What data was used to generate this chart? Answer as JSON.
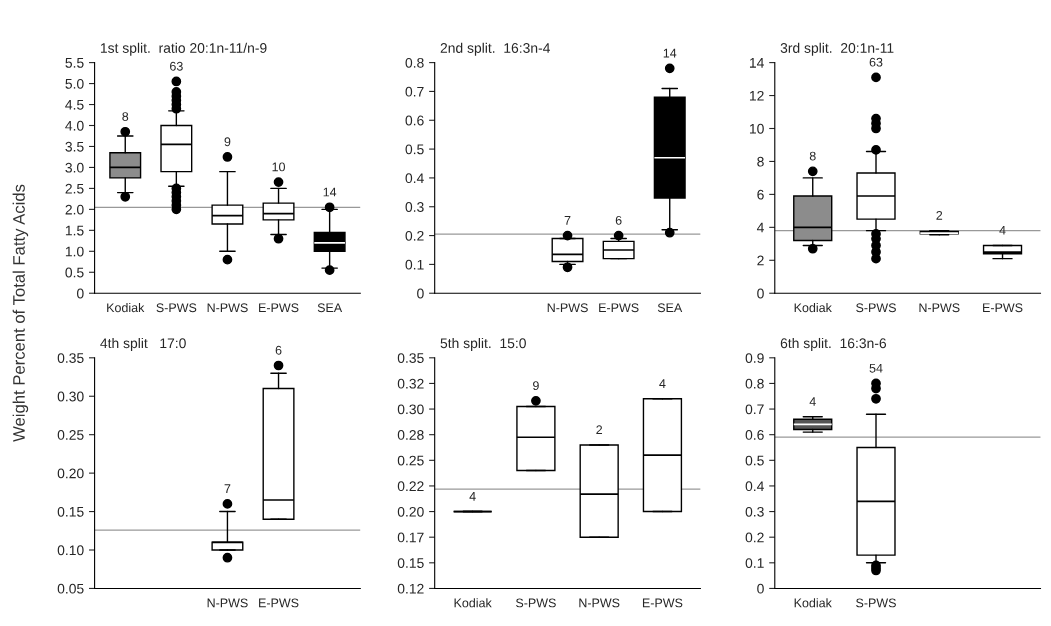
{
  "chart_data": [
    {
      "type": "box",
      "title": "1st split.  ratio 20:1n-11/n-9",
      "ylabel": "Weight Percent of Total Fatty Acids",
      "categories": [
        "Kodiak",
        "S-PWS",
        "N-PWS",
        "E-PWS",
        "SEA"
      ],
      "colors": [
        "#8c8c8c",
        "#ffffff",
        "#ffffff",
        "#ffffff",
        "#000000"
      ],
      "boxes": [
        {
          "low": 2.4,
          "q1": 2.75,
          "median": 3.0,
          "q3": 3.35,
          "high": 3.75,
          "outliers": [
            2.3,
            3.85
          ]
        },
        {
          "low": 2.55,
          "q1": 2.9,
          "median": 3.55,
          "q3": 4.0,
          "high": 4.35,
          "outliers": [
            2.0,
            2.1,
            2.2,
            2.3,
            2.4,
            2.5,
            4.4,
            4.5,
            4.6,
            4.7,
            4.8,
            5.05
          ]
        },
        {
          "low": 1.0,
          "q1": 1.65,
          "median": 1.85,
          "q3": 2.1,
          "high": 2.9,
          "outliers": [
            0.8,
            3.25
          ]
        },
        {
          "low": 1.4,
          "q1": 1.75,
          "median": 1.9,
          "q3": 2.15,
          "high": 2.5,
          "outliers": [
            1.3,
            2.65
          ]
        },
        {
          "low": 0.6,
          "q1": 1.0,
          "median": 1.2,
          "q3": 1.45,
          "high": 2.0,
          "outliers": [
            0.55,
            2.05
          ]
        }
      ],
      "ylim": [
        0,
        5.5
      ],
      "yticks": [
        0,
        0.5,
        {
          "value": 1,
          "label": "1.0"
        },
        1.5,
        {
          "value": 2,
          "label": "2.0"
        },
        2.5,
        {
          "value": 3,
          "label": "3.0"
        },
        3.5,
        {
          "value": 4,
          "label": "4.0"
        },
        4.5,
        {
          "value": 5,
          "label": "5.0"
        },
        5.5
      ],
      "ref_lines": [
        {
          "axis": "y",
          "value": 2.05
        }
      ],
      "annotations": [
        "8",
        "63",
        "9",
        "10",
        "14"
      ]
    },
    {
      "type": "box",
      "title": "2nd split.  16:3n-4",
      "categories": [
        null,
        null,
        "N-PWS",
        "E-PWS",
        "SEA"
      ],
      "colors": [
        "#ffffff",
        "#ffffff",
        "#ffffff",
        "#ffffff",
        "#000000"
      ],
      "boxes": [
        null,
        null,
        {
          "low": 0.1,
          "q1": 0.11,
          "median": 0.135,
          "q3": 0.19,
          "high": 0.19,
          "outliers": [
            0.09,
            0.2
          ]
        },
        {
          "low": 0.12,
          "q1": 0.12,
          "median": 0.15,
          "q3": 0.18,
          "high": 0.19,
          "outliers": [
            0.2
          ]
        },
        {
          "low": 0.22,
          "q1": 0.33,
          "median": 0.47,
          "q3": 0.68,
          "high": 0.71,
          "outliers": [
            0.21,
            0.78
          ]
        }
      ],
      "ylim": [
        0,
        0.8
      ],
      "yticks": [
        0,
        0.1,
        0.2,
        0.3,
        0.4,
        0.5,
        0.6,
        0.7,
        0.8
      ],
      "ref_lines": [
        {
          "axis": "y",
          "value": 0.205
        }
      ],
      "annotations": [
        "7",
        "6",
        "14"
      ]
    },
    {
      "type": "box",
      "title": "3rd split.  20:1n-11",
      "categories": [
        "Kodiak",
        "S-PWS",
        "N-PWS",
        "E-PWS"
      ],
      "colors": [
        "#8c8c8c",
        "#ffffff",
        "#000000",
        "#ffffff"
      ],
      "boxes": [
        {
          "low": 2.9,
          "q1": 3.2,
          "median": 4.0,
          "q3": 5.9,
          "high": 7.0,
          "outliers": [
            2.7,
            7.4
          ]
        },
        {
          "low": 3.8,
          "q1": 4.5,
          "median": 5.9,
          "q3": 7.3,
          "high": 8.6,
          "outliers": [
            2.1,
            2.5,
            2.9,
            3.3,
            3.6,
            8.7,
            10.0,
            10.3,
            10.6,
            13.1
          ]
        },
        {
          "low": 3.55,
          "q1": 3.6,
          "median": 3.65,
          "q3": 3.75,
          "high": 3.8
        },
        {
          "low": 2.1,
          "q1": 2.4,
          "median": 2.5,
          "q3": 2.9,
          "high": 2.9
        }
      ],
      "ylim": [
        0,
        14
      ],
      "yticks": [
        0,
        2,
        4,
        6,
        8,
        10,
        12,
        14
      ],
      "ref_lines": [
        {
          "axis": "y",
          "value": 3.8
        }
      ],
      "annotations": [
        "8",
        "63",
        "2",
        "4"
      ]
    },
    {
      "type": "box",
      "title": "4th split   17:0",
      "categories": [
        null,
        null,
        "N-PWS",
        "E-PWS",
        null
      ],
      "colors": [
        "#ffffff",
        "#ffffff",
        "#ffffff",
        "#ffffff",
        "#ffffff"
      ],
      "boxes": [
        null,
        null,
        {
          "low": 0.1,
          "q1": 0.1,
          "median": 0.11,
          "q3": 0.11,
          "high": 0.15,
          "outliers": [
            0.09,
            0.16
          ]
        },
        {
          "low": 0.14,
          "q1": 0.14,
          "median": 0.165,
          "q3": 0.31,
          "high": 0.33,
          "outliers": [
            0.34
          ]
        },
        null
      ],
      "ylim": [
        0.05,
        0.35
      ],
      "yticks": [
        {
          "value": 0.05,
          "label": "0.05"
        },
        {
          "value": 0.1,
          "label": "0.10"
        },
        {
          "value": 0.15,
          "label": "0.15"
        },
        {
          "value": 0.2,
          "label": "0.20"
        },
        {
          "value": 0.25,
          "label": "0.25"
        },
        {
          "value": 0.3,
          "label": "0.30"
        },
        {
          "value": 0.35,
          "label": "0.35"
        }
      ],
      "ref_lines": [
        {
          "axis": "y",
          "value": 0.126
        }
      ],
      "annotations": [
        "7",
        "6"
      ]
    },
    {
      "type": "box",
      "title": "5th split.  15:0",
      "categories": [
        "Kodiak",
        "S-PWS",
        "N-PWS",
        "E-PWS"
      ],
      "colors": [
        "#000000",
        "#ffffff",
        "#ffffff",
        "#ffffff"
      ],
      "boxes": [
        {
          "low": 0.2,
          "q1": 0.2,
          "median": 0.2,
          "q3": 0.2,
          "high": 0.2
        },
        {
          "low": 0.24,
          "q1": 0.24,
          "median": 0.2725,
          "q3": 0.3025,
          "high": 0.3025,
          "outliers": [
            0.308
          ]
        },
        {
          "low": 0.175,
          "q1": 0.175,
          "median": 0.217,
          "q3": 0.265,
          "high": 0.265
        },
        {
          "low": 0.2,
          "q1": 0.2,
          "median": 0.255,
          "q3": 0.31,
          "high": 0.31
        }
      ],
      "ylim": [
        0.125,
        0.35
      ],
      "yticks": [
        {
          "value": 0.125,
          "label": "0.12"
        },
        {
          "value": 0.15,
          "label": "0.15"
        },
        {
          "value": 0.175,
          "label": "0.17"
        },
        {
          "value": 0.2,
          "label": "0.20"
        },
        {
          "value": 0.225,
          "label": "0.22"
        },
        {
          "value": 0.25,
          "label": "0.25"
        },
        {
          "value": 0.275,
          "label": "0.28"
        },
        {
          "value": 0.3,
          "label": "0.30"
        },
        {
          "value": 0.325,
          "label": "0.32"
        },
        {
          "value": 0.35,
          "label": "0.35"
        }
      ],
      "ref_lines": [
        {
          "axis": "y",
          "value": 0.222
        }
      ],
      "annotations": [
        "4",
        "9",
        "2",
        "4"
      ]
    },
    {
      "type": "box",
      "title": "6th split.  16:3n-6",
      "categories": [
        "Kodiak",
        "S-PWS",
        null,
        null
      ],
      "colors": [
        "#555555",
        "#ffffff",
        "#ffffff",
        "#ffffff"
      ],
      "boxes": [
        {
          "low": 0.61,
          "q1": 0.62,
          "median": 0.64,
          "q3": 0.66,
          "high": 0.67
        },
        {
          "low": 0.1,
          "q1": 0.13,
          "median": 0.34,
          "q3": 0.55,
          "high": 0.68,
          "outliers": [
            0.07,
            0.08,
            0.09,
            0.74,
            0.78,
            0.8
          ]
        },
        null,
        null
      ],
      "ylim": [
        0,
        0.9
      ],
      "yticks": [
        0,
        0.1,
        0.2,
        0.3,
        0.4,
        0.5,
        0.6,
        0.7,
        0.8,
        0.9
      ],
      "ref_lines": [
        {
          "axis": "y",
          "value": 0.59
        }
      ],
      "annotations": [
        "4",
        "54"
      ]
    }
  ]
}
